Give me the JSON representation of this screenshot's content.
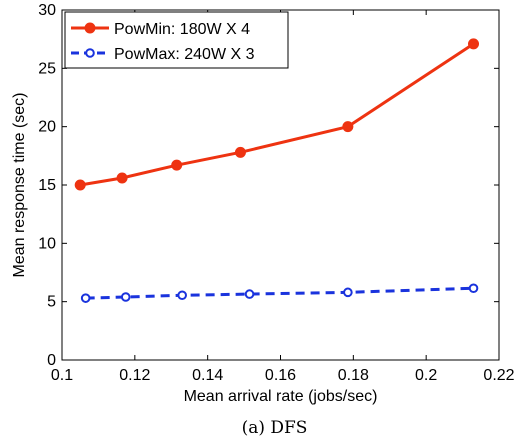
{
  "chart_data": {
    "type": "line",
    "caption": "(a) DFS",
    "xlabel": "Mean arrival rate (jobs/sec)",
    "ylabel": "Mean response time (sec)",
    "xlim": [
      0.1,
      0.22
    ],
    "ylim": [
      0,
      30
    ],
    "xticks": [
      "0.1",
      "0.12",
      "0.14",
      "0.16",
      "0.18",
      "0.2",
      "0.22"
    ],
    "yticks": [
      "0",
      "5",
      "10",
      "15",
      "20",
      "25",
      "30"
    ],
    "grid": false,
    "legend_position": "top-left",
    "series": [
      {
        "name": "PowMin: 180W X 4",
        "color": "#ee3311",
        "line_style": "solid",
        "marker": "filled-circle",
        "x": [
          0.105,
          0.1165,
          0.1315,
          0.149,
          0.1785,
          0.213
        ],
        "y": [
          15.0,
          15.6,
          16.7,
          17.8,
          20.0,
          27.1
        ]
      },
      {
        "name": "PowMax: 240W X 3",
        "color": "#1a33dd",
        "line_style": "dashed",
        "marker": "open-circle",
        "x": [
          0.1065,
          0.1175,
          0.133,
          0.1515,
          0.1785,
          0.213
        ],
        "y": [
          5.3,
          5.4,
          5.55,
          5.65,
          5.8,
          6.15
        ]
      }
    ]
  }
}
